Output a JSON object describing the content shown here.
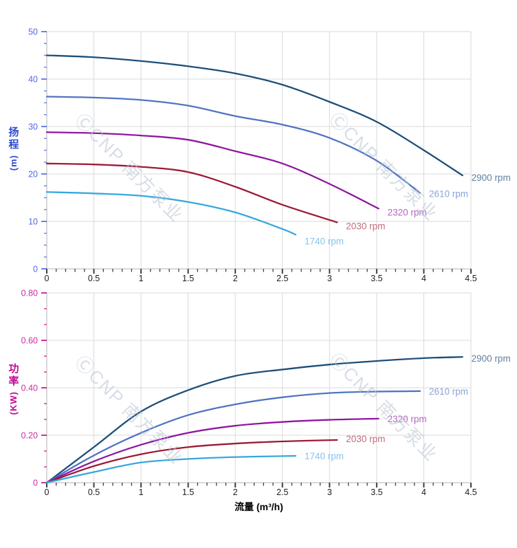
{
  "page": {
    "background": "#ffffff"
  },
  "watermark": {
    "text": "ⒸCNP 南方泵业"
  },
  "x_axis": {
    "title": "流量 (m³/h)",
    "min": 0,
    "max": 4.5,
    "major_step": 0.5,
    "minors_per_major": 5,
    "tick_labels": [
      "0",
      "0.5",
      "1",
      "1.5",
      "2",
      "2.5",
      "3",
      "3.5",
      "4",
      "4.5"
    ],
    "tick_color": "#3f3f3f",
    "label_color": "#1c1c1c",
    "title_color": "#000000"
  },
  "chart_data": [
    {
      "type": "line",
      "name": "head-vs-flow",
      "ylabel": "扬程",
      "ylabel_unit": "(m)",
      "xlabel": "流量 (m³/h)",
      "ylim": [
        0,
        50
      ],
      "xlim": [
        0,
        4.5
      ],
      "grid": true,
      "y_major_step": 10,
      "y_minors_per_major": 4,
      "y_tick_labels": [
        "0",
        "10",
        "20",
        "30",
        "40",
        "50"
      ],
      "grid_color": "#d9d9d9",
      "axis_color": "#b3b3b3",
      "y_tick_color": "#6b7fe8",
      "y_tick_label_color": "#5068e0",
      "series": [
        {
          "name": "2900 rpm",
          "color": "#1d4e79",
          "label_color": "#62809f",
          "points": [
            [
              0,
              45
            ],
            [
              0.5,
              44.6
            ],
            [
              1,
              43.8
            ],
            [
              1.5,
              42.7
            ],
            [
              2,
              41.2
            ],
            [
              2.5,
              38.8
            ],
            [
              3,
              35.2
            ],
            [
              3.5,
              31.0
            ],
            [
              4,
              25.0
            ],
            [
              4.41,
              19.7
            ]
          ]
        },
        {
          "name": "2610 rpm",
          "color": "#4f74c2",
          "label_color": "#8ba3d8",
          "points": [
            [
              0,
              36.3
            ],
            [
              0.5,
              36.1
            ],
            [
              1,
              35.6
            ],
            [
              1.5,
              34.4
            ],
            [
              2,
              32.2
            ],
            [
              2.5,
              30.4
            ],
            [
              3,
              27.6
            ],
            [
              3.5,
              22.8
            ],
            [
              3.96,
              16.0
            ]
          ]
        },
        {
          "name": "2320 rpm",
          "color": "#8f16a0",
          "label_color": "#b266bd",
          "points": [
            [
              0,
              28.8
            ],
            [
              0.5,
              28.6
            ],
            [
              1,
              28.1
            ],
            [
              1.5,
              27.2
            ],
            [
              2,
              24.8
            ],
            [
              2.5,
              22.2
            ],
            [
              3,
              17.9
            ],
            [
              3.52,
              12.7
            ]
          ]
        },
        {
          "name": "2030 rpm",
          "color": "#9c1a35",
          "label_color": "#c06a7c",
          "points": [
            [
              0,
              22.2
            ],
            [
              0.5,
              22.0
            ],
            [
              1,
              21.5
            ],
            [
              1.5,
              20.4
            ],
            [
              2,
              17.3
            ],
            [
              2.5,
              13.5
            ],
            [
              3.08,
              9.8
            ]
          ]
        },
        {
          "name": "1740 rpm",
          "color": "#36a7de",
          "label_color": "#86c5ec",
          "points": [
            [
              0,
              16.2
            ],
            [
              0.5,
              15.9
            ],
            [
              1,
              15.4
            ],
            [
              1.5,
              14.1
            ],
            [
              2,
              11.9
            ],
            [
              2.5,
              8.4
            ],
            [
              2.64,
              7.2
            ]
          ]
        }
      ]
    },
    {
      "type": "line",
      "name": "power-vs-flow",
      "ylabel": "功率",
      "ylabel_unit": "(KW)",
      "xlabel": "流量 (m³/h)",
      "ylim": [
        0,
        0.8
      ],
      "xlim": [
        0,
        4.5
      ],
      "grid": true,
      "y_major_step": 0.2,
      "y_minors_per_major": 3,
      "y_tick_labels": [
        "0",
        "0.20",
        "0.40",
        "0.60",
        "0.80"
      ],
      "grid_color": "#d9d9d9",
      "axis_color": "#b3b3b3",
      "y_tick_color": "#d02f9f",
      "y_tick_label_color": "#cb2da0",
      "series": [
        {
          "name": "2900 rpm",
          "color": "#1d4e79",
          "label_color": "#62809f",
          "points": [
            [
              0,
              0
            ],
            [
              0.5,
              0.15
            ],
            [
              1,
              0.3
            ],
            [
              1.5,
              0.39
            ],
            [
              2,
              0.45
            ],
            [
              2.5,
              0.477
            ],
            [
              3,
              0.498
            ],
            [
              3.5,
              0.513
            ],
            [
              4,
              0.525
            ],
            [
              4.41,
              0.53
            ]
          ]
        },
        {
          "name": "2610 rpm",
          "color": "#4f74c2",
          "label_color": "#8ba3d8",
          "points": [
            [
              0,
              0
            ],
            [
              0.5,
              0.115
            ],
            [
              1,
              0.21
            ],
            [
              1.5,
              0.285
            ],
            [
              2,
              0.33
            ],
            [
              2.5,
              0.36
            ],
            [
              3,
              0.378
            ],
            [
              3.5,
              0.384
            ],
            [
              3.96,
              0.386
            ]
          ]
        },
        {
          "name": "2320 rpm",
          "color": "#8f16a0",
          "label_color": "#b266bd",
          "points": [
            [
              0,
              0
            ],
            [
              0.5,
              0.09
            ],
            [
              1,
              0.16
            ],
            [
              1.5,
              0.21
            ],
            [
              2,
              0.24
            ],
            [
              2.5,
              0.256
            ],
            [
              3,
              0.265
            ],
            [
              3.52,
              0.27
            ]
          ]
        },
        {
          "name": "2030 rpm",
          "color": "#9c1a35",
          "label_color": "#c06a7c",
          "points": [
            [
              0,
              0
            ],
            [
              0.5,
              0.07
            ],
            [
              1,
              0.12
            ],
            [
              1.5,
              0.15
            ],
            [
              2,
              0.165
            ],
            [
              2.5,
              0.174
            ],
            [
              3.08,
              0.18
            ]
          ]
        },
        {
          "name": "1740 rpm",
          "color": "#36a7de",
          "label_color": "#86c5ec",
          "points": [
            [
              0,
              0
            ],
            [
              0.5,
              0.045
            ],
            [
              1,
              0.085
            ],
            [
              1.5,
              0.1
            ],
            [
              2,
              0.108
            ],
            [
              2.64,
              0.113
            ]
          ]
        }
      ]
    }
  ]
}
